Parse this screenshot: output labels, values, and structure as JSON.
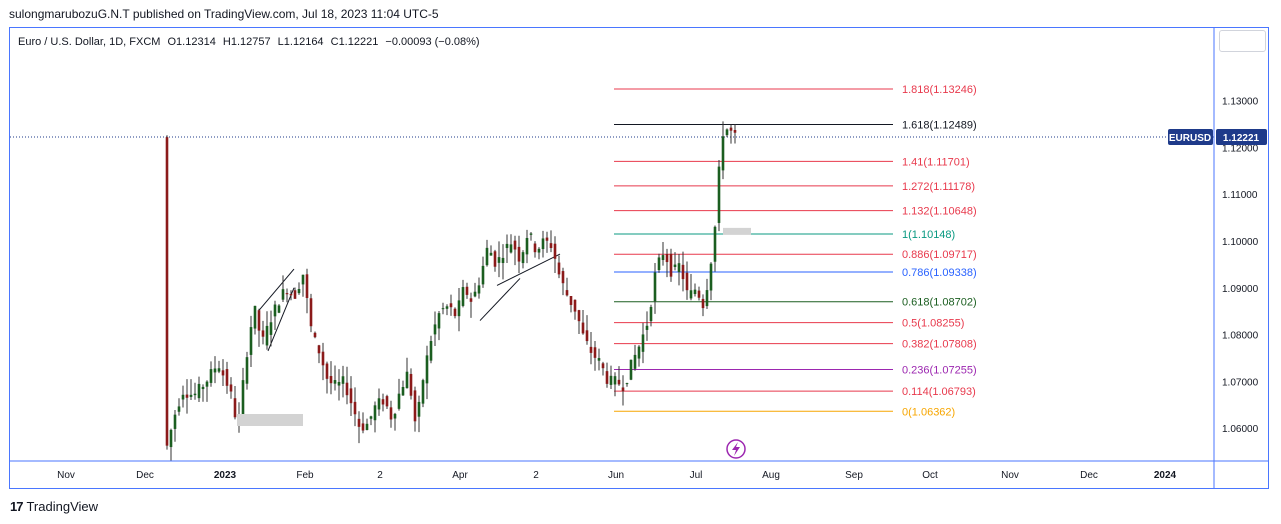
{
  "header": {
    "published_line": "sulongmarubozuG.N.T published on TradingView.com, Jul 18, 2023 11:04 UTC-5"
  },
  "symbol": {
    "name": "Euro / U.S. Dollar, 1D, FXCM",
    "open": "O1.12314",
    "high": "H1.12757",
    "low": "L1.12164",
    "close": "C1.12221",
    "change": "−0.00093 (−0.08%)"
  },
  "price_tag": {
    "ticker": "EURUSD",
    "price": "1.12221"
  },
  "footer": {
    "brand": "TradingView"
  },
  "chart_data": {
    "type": "candlestick",
    "y_axis": {
      "ticks": [
        "1.13000",
        "1.12000",
        "1.11000",
        "1.10000",
        "1.09000",
        "1.08000",
        "1.07000",
        "1.06000"
      ],
      "ylim": [
        1.053,
        1.1455
      ],
      "scale": "linear",
      "position": "right"
    },
    "x_axis": {
      "ticks": [
        {
          "label": "Nov",
          "bold": false
        },
        {
          "label": "Dec",
          "bold": false
        },
        {
          "label": "2023",
          "bold": true
        },
        {
          "label": "Feb",
          "bold": false
        },
        {
          "label": "2",
          "bold": false
        },
        {
          "label": "Apr",
          "bold": false
        },
        {
          "label": "2",
          "bold": false
        },
        {
          "label": "Jun",
          "bold": false
        },
        {
          "label": "Jul",
          "bold": false
        },
        {
          "label": "Aug",
          "bold": false
        },
        {
          "label": "Sep",
          "bold": false
        },
        {
          "label": "Oct",
          "bold": false
        },
        {
          "label": "Nov",
          "bold": false
        },
        {
          "label": "Dec",
          "bold": false
        },
        {
          "label": "2024",
          "bold": true
        }
      ]
    },
    "last_price": 1.12221,
    "fib_levels": [
      {
        "label": "1.818(1.13246)",
        "value": 1.13246,
        "color": "#e8394c"
      },
      {
        "label": "1.618(1.12489)",
        "value": 1.12489,
        "color": "#131722"
      },
      {
        "label": "1.41(1.11701)",
        "value": 1.11701,
        "color": "#e8394c"
      },
      {
        "label": "1.272(1.11178)",
        "value": 1.11178,
        "color": "#e8394c"
      },
      {
        "label": "1.132(1.10648)",
        "value": 1.10648,
        "color": "#e8394c"
      },
      {
        "label": "1(1.10148)",
        "value": 1.10148,
        "color": "#089981"
      },
      {
        "label": "0.886(1.09717)",
        "value": 1.09717,
        "color": "#e8394c"
      },
      {
        "label": "0.786(1.09338)",
        "value": 1.09338,
        "color": "#2962ff"
      },
      {
        "label": "0.618(1.08702)",
        "value": 1.08702,
        "color": "#1b5e20"
      },
      {
        "label": "0.5(1.08255)",
        "value": 1.08255,
        "color": "#e8394c"
      },
      {
        "label": "0.382(1.07808)",
        "value": 1.07808,
        "color": "#e8394c"
      },
      {
        "label": "0.236(1.07255)",
        "value": 1.07255,
        "color": "#9c27b0"
      },
      {
        "label": "0.114(1.06793)",
        "value": 1.06793,
        "color": "#e8394c"
      },
      {
        "label": "0(1.06362)",
        "value": 1.06362,
        "color": "#f7a600"
      }
    ],
    "colors": {
      "up": "#1b5e20",
      "down": "#8b1a1a",
      "price_line": "#1e3a8a",
      "price_tag_bg": "#1e3a8a"
    }
  }
}
